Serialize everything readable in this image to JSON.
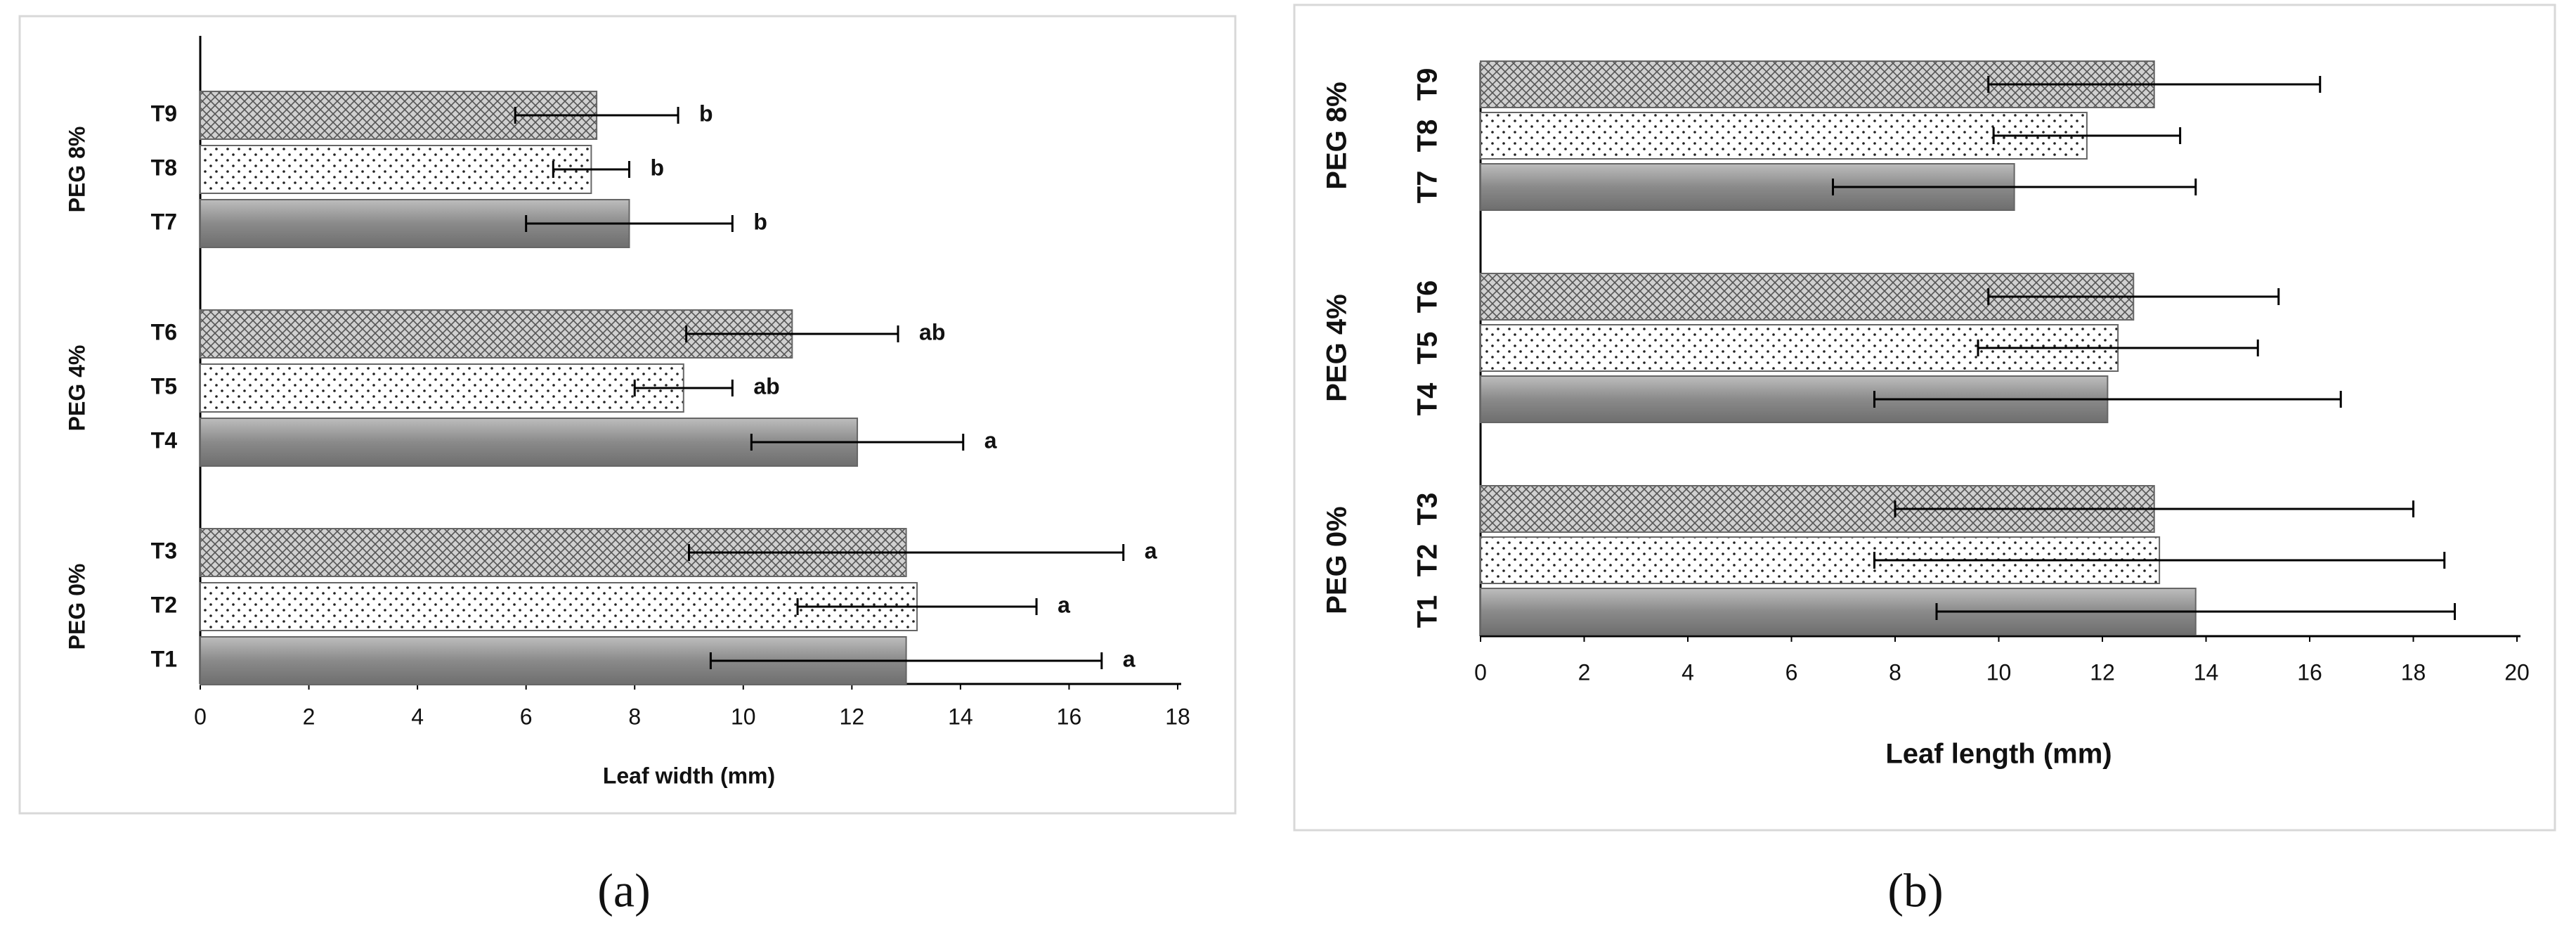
{
  "chart_data": [
    {
      "type": "bar",
      "orientation": "horizontal",
      "caption": "(a)",
      "x_label": "Leaf width (mm)",
      "groups": [
        "PEG 0%",
        "PEG 4%",
        "PEG 8%"
      ],
      "categories": [
        "T1",
        "T2",
        "T3",
        "T4",
        "T5",
        "T6",
        "T7",
        "T8",
        "T9"
      ],
      "values": [
        13,
        13.2,
        13,
        12.1,
        8.9,
        10.9,
        7.9,
        7.2,
        7.3
      ],
      "errors": [
        3.6,
        2.2,
        4,
        1.95,
        0.9,
        1.95,
        1.9,
        0.7,
        1.5
      ],
      "letters": [
        "a",
        "a",
        "a",
        "a",
        "ab",
        "ab",
        "b",
        "b",
        "b"
      ],
      "xlim": [
        0,
        18
      ],
      "xticks": [
        0,
        2,
        4,
        6,
        8,
        10,
        12,
        14,
        16,
        18
      ],
      "grid": false
    },
    {
      "type": "bar",
      "orientation": "horizontal",
      "caption": "(b)",
      "x_label": "Leaf length (mm)",
      "groups": [
        "PEG 0%",
        "PEG 4%",
        "PEG 8%"
      ],
      "categories": [
        "T1",
        "T2",
        "T3",
        "T4",
        "T5",
        "T6",
        "T7",
        "T8",
        "T9"
      ],
      "values": [
        13.8,
        13.1,
        13,
        12.1,
        12.3,
        12.6,
        10.3,
        11.7,
        13
      ],
      "errors": [
        5,
        5.5,
        5,
        4.5,
        2.7,
        2.8,
        3.5,
        1.8,
        3.2
      ],
      "xlim": [
        0,
        20
      ],
      "xticks": [
        0,
        2,
        4,
        6,
        8,
        10,
        12,
        14,
        16,
        18,
        20
      ],
      "grid": false
    }
  ]
}
